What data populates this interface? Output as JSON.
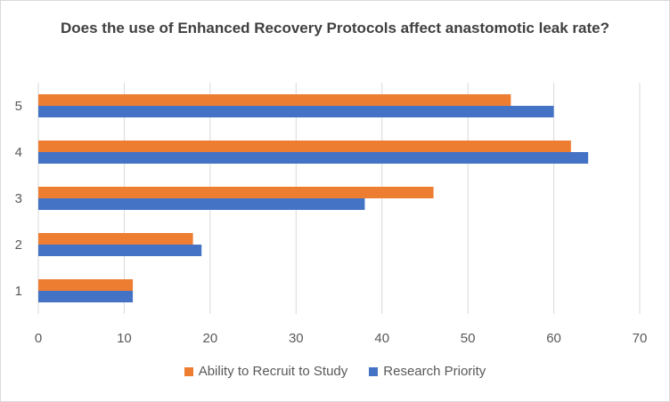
{
  "chart_data": {
    "type": "bar",
    "orientation": "horizontal",
    "title": "Does the use of Enhanced Recovery Protocols affect anastomotic leak rate?",
    "categories": [
      "1",
      "2",
      "3",
      "4",
      "5"
    ],
    "series": [
      {
        "name": "Ability to Recruit to Study",
        "color": "#ED7D31",
        "values": [
          11,
          18,
          46,
          62,
          55
        ]
      },
      {
        "name": "Research Priority",
        "color": "#4472C4",
        "values": [
          11,
          19,
          38,
          64,
          60
        ]
      }
    ],
    "xlim": [
      0,
      70
    ],
    "xticks": [
      0,
      10,
      20,
      30,
      40,
      50,
      60,
      70
    ],
    "grid": "vertical",
    "legend": "bottom"
  }
}
